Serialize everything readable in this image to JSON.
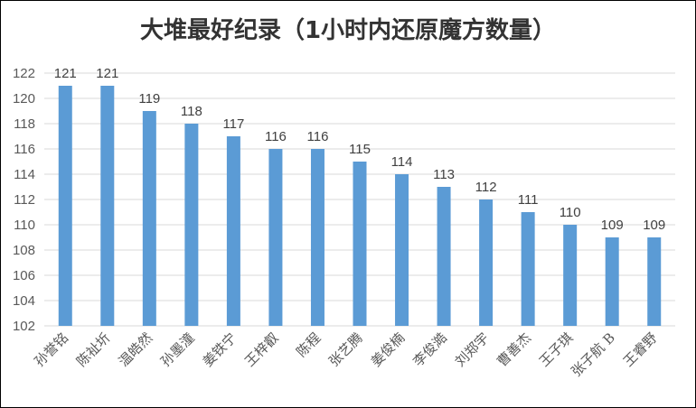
{
  "chart_data": {
    "type": "bar",
    "title": "大堆最好纪录（1小时内还原魔方数量）",
    "categories": [
      "孙誉铭",
      "陈祉圻",
      "温皓然",
      "孙墨潼",
      "姜铁宁",
      "王梓叡",
      "陈程",
      "张艺腾",
      "姜俊楠",
      "李俊澔",
      "刘郑宇",
      "曹善杰",
      "王子琪",
      "张子航 B",
      "王睿野"
    ],
    "values": [
      121,
      121,
      119,
      118,
      117,
      116,
      116,
      115,
      114,
      113,
      112,
      111,
      110,
      109,
      109
    ],
    "xlabel": "",
    "ylabel": "",
    "ylim": [
      102,
      122
    ],
    "yticks": [
      102,
      104,
      106,
      108,
      110,
      112,
      114,
      116,
      118,
      120,
      122
    ],
    "grid": true,
    "legend": "none",
    "bar_color": "#5b9bd5",
    "grid_color": "#d9d9d9"
  }
}
